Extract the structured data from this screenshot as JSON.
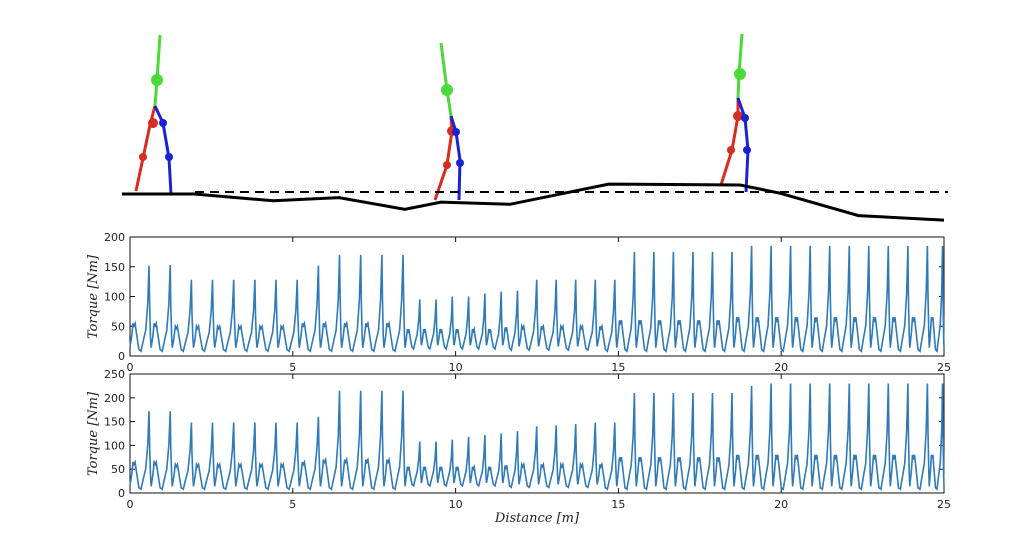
{
  "figure": {
    "walker_colors": {
      "torso": "#4cd93a",
      "leg_left": "#d92b20",
      "leg_right": "#1a22d6"
    },
    "terrain_color": "#000000",
    "series_color": "#2f7ab9"
  },
  "terrain": {
    "profile_x": [
      0,
      2.2,
      4.6,
      6.6,
      8.6,
      9.7,
      11.8,
      14.8,
      18.8,
      20.0,
      22.4,
      25.0
    ],
    "profile_y": [
      0,
      0,
      -0.15,
      -0.08,
      -0.34,
      -0.18,
      -0.23,
      0.22,
      0.2,
      0.02,
      -0.48,
      -0.58
    ]
  },
  "chart_data": [
    {
      "type": "line",
      "xlabel": "",
      "ylabel": "Torque  [Nm]",
      "xlim": [
        0,
        25
      ],
      "ylim": [
        0,
        200
      ],
      "x_ticks": [
        "0",
        "5",
        "10",
        "15",
        "20",
        "25"
      ],
      "y_ticks": [
        "0",
        "50",
        "100",
        "150",
        "200"
      ],
      "grid": false,
      "steps": {
        "x": [
          0,
          0.65,
          1.3,
          1.95,
          2.6,
          3.25,
          3.9,
          4.55,
          5.2,
          5.85,
          6.5,
          7.15,
          7.8,
          8.45,
          8.95,
          9.45,
          9.95,
          10.45,
          10.95,
          11.45,
          11.95,
          12.55,
          13.15,
          13.75,
          14.35,
          14.95,
          15.55,
          16.15,
          16.75,
          17.35,
          17.95,
          18.55,
          19.15,
          19.75,
          20.35,
          20.95,
          21.55,
          22.15,
          22.75,
          23.35,
          23.95,
          24.55
        ],
        "peak": [
          152,
          153,
          128,
          128,
          128,
          128,
          128,
          128,
          152,
          170,
          170,
          170,
          170,
          95,
          95,
          100,
          100,
          105,
          108,
          110,
          128,
          128,
          128,
          128,
          128,
          175,
          175,
          175,
          175,
          175,
          175,
          185,
          185,
          185,
          185,
          185,
          185,
          185,
          185,
          185,
          185,
          185
        ],
        "trough": [
          8,
          8,
          8,
          8,
          8,
          8,
          8,
          8,
          8,
          8,
          8,
          8,
          8,
          12,
          12,
          12,
          12,
          12,
          12,
          10,
          10,
          10,
          10,
          10,
          8,
          8,
          8,
          8,
          8,
          8,
          8,
          8,
          8,
          8,
          8,
          8,
          8,
          8,
          8,
          8,
          8,
          8
        ],
        "mid": [
          55,
          55,
          50,
          50,
          50,
          50,
          50,
          50,
          55,
          55,
          55,
          55,
          55,
          45,
          45,
          45,
          45,
          45,
          45,
          48,
          50,
          50,
          50,
          50,
          50,
          60,
          60,
          60,
          60,
          60,
          60,
          65,
          65,
          65,
          65,
          65,
          65,
          65,
          65,
          65,
          65,
          65
        ]
      }
    },
    {
      "type": "line",
      "xlabel": "Distance   [m]",
      "ylabel": "Torque  [Nm]",
      "xlim": [
        0,
        25
      ],
      "ylim": [
        0,
        250
      ],
      "x_ticks": [
        "0",
        "5",
        "10",
        "15",
        "20",
        "25"
      ],
      "y_ticks": [
        "0",
        "50",
        "100",
        "150",
        "200",
        "250"
      ],
      "grid": false,
      "steps": {
        "x": [
          0,
          0.65,
          1.3,
          1.95,
          2.6,
          3.25,
          3.9,
          4.55,
          5.2,
          5.85,
          6.5,
          7.15,
          7.8,
          8.45,
          8.95,
          9.45,
          9.95,
          10.45,
          10.95,
          11.45,
          11.95,
          12.55,
          13.15,
          13.75,
          14.35,
          14.95,
          15.55,
          16.15,
          16.75,
          17.35,
          17.95,
          18.55,
          19.15,
          19.75,
          20.35,
          20.95,
          21.55,
          22.15,
          22.75,
          23.35,
          23.95,
          24.55
        ],
        "peak": [
          172,
          172,
          148,
          148,
          148,
          148,
          148,
          148,
          160,
          215,
          215,
          215,
          215,
          108,
          108,
          112,
          118,
          122,
          125,
          130,
          140,
          142,
          145,
          148,
          148,
          210,
          210,
          210,
          210,
          210,
          210,
          225,
          230,
          230,
          230,
          230,
          230,
          230,
          230,
          230,
          230,
          230
        ],
        "trough": [
          8,
          8,
          8,
          8,
          8,
          8,
          8,
          8,
          8,
          8,
          8,
          8,
          8,
          15,
          15,
          15,
          15,
          15,
          15,
          12,
          12,
          12,
          12,
          12,
          8,
          8,
          8,
          8,
          8,
          8,
          8,
          8,
          8,
          8,
          8,
          8,
          8,
          8,
          8,
          8,
          8,
          8
        ],
        "mid": [
          65,
          65,
          60,
          60,
          60,
          60,
          60,
          60,
          65,
          70,
          70,
          70,
          70,
          55,
          55,
          55,
          55,
          55,
          55,
          58,
          60,
          60,
          60,
          60,
          60,
          75,
          75,
          75,
          75,
          75,
          75,
          80,
          80,
          80,
          80,
          80,
          80,
          80,
          80,
          80,
          80,
          80
        ]
      }
    }
  ]
}
